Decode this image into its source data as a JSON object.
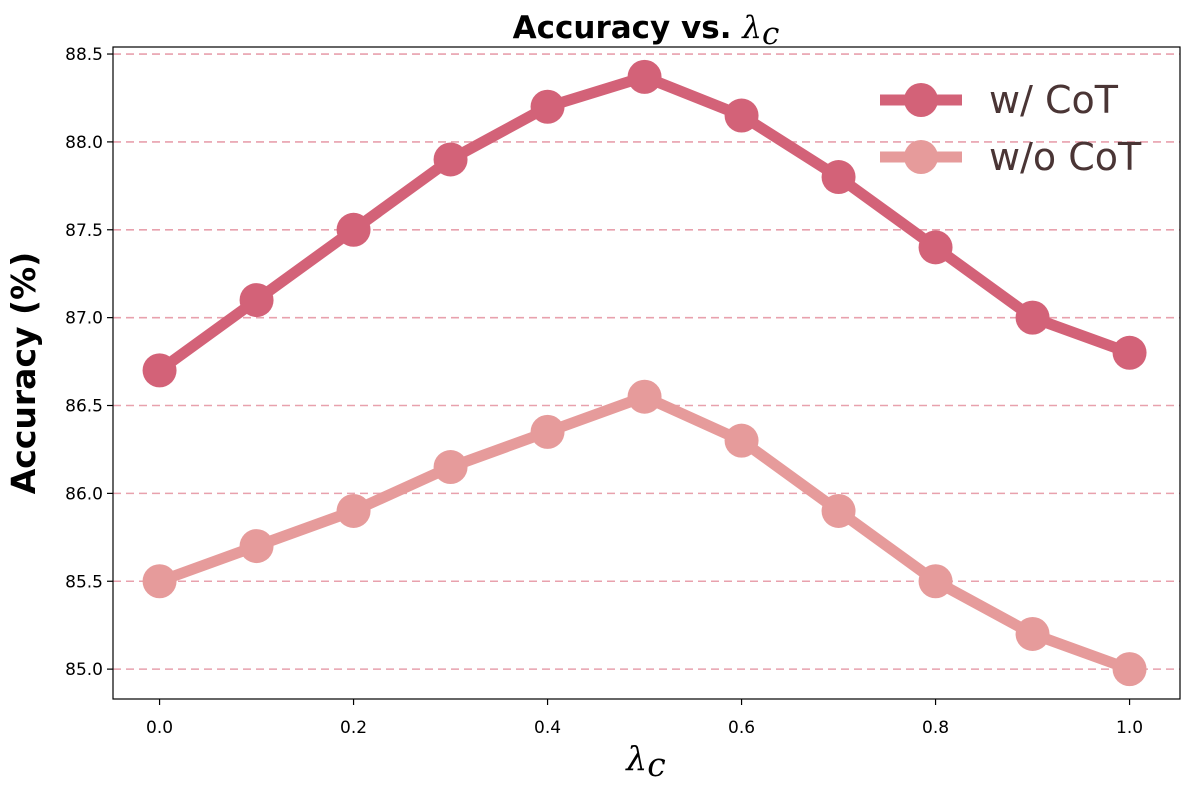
{
  "chart_data": {
    "type": "line",
    "title": {
      "text": "Accuracy vs.",
      "symbol": "λ",
      "symbol_sub": "c"
    },
    "xlabel": {
      "symbol": "λ",
      "symbol_sub": "c"
    },
    "ylabel": "Accuracy (%)",
    "x": [
      0.0,
      0.1,
      0.2,
      0.3,
      0.4,
      0.5,
      0.6,
      0.7,
      0.8,
      0.9,
      1.0
    ],
    "x_ticks": [
      "0.0",
      "0.2",
      "0.4",
      "0.6",
      "0.8",
      "1.0"
    ],
    "y_ticks": [
      "85.0",
      "85.5",
      "86.0",
      "86.5",
      "87.0",
      "87.5",
      "88.0",
      "88.5"
    ],
    "xlim": [
      -0.048,
      1.052
    ],
    "ylim": [
      84.83,
      88.54
    ],
    "grid": "horizontal dashed",
    "grid_color": "#e8a1ad",
    "legend_position": "top-right",
    "series": [
      {
        "name": "w/ CoT",
        "color": "#d36278",
        "values": [
          86.7,
          87.1,
          87.5,
          87.9,
          88.2,
          88.37,
          88.15,
          87.8,
          87.4,
          87.0,
          86.8
        ]
      },
      {
        "name": "w/o CoT",
        "color": "#e69b9b",
        "values": [
          85.5,
          85.7,
          85.9,
          86.15,
          86.35,
          86.55,
          86.3,
          85.9,
          85.5,
          85.2,
          85.0
        ]
      }
    ],
    "legend_text_color": "#4a3535"
  }
}
